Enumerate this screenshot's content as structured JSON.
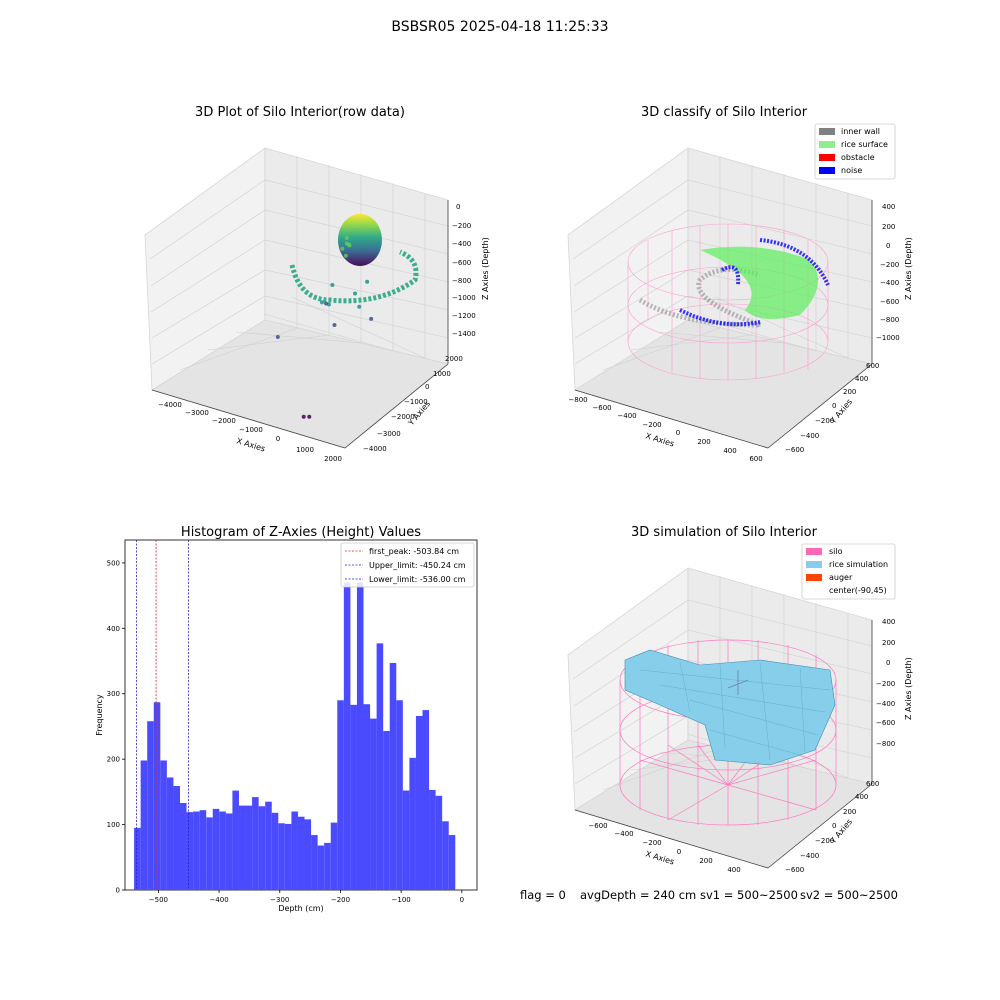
{
  "figure": {
    "suptitle": "BSBSR05 2025-04-18 11:25:33"
  },
  "status": {
    "flag": "flag = 0",
    "avg_depth": "avgDepth = 240 cm",
    "sv1": "sv1 = 500~2500",
    "sv2": "sv2 = 500~2500"
  },
  "colors": {
    "bars": "#4a4aff",
    "first_peak": "#d62728",
    "limits": "#2222cc",
    "inner_wall": "#808080",
    "rice_surface": "#90ee90",
    "obstacle": "#ff0000",
    "noise": "#0000ff",
    "silo": "#ff69b4",
    "rice_simulation": "#87ceeb",
    "auger": "#ff4500"
  },
  "chart_data": [
    {
      "type": "scatter",
      "title": "3D Plot of Silo Interior(row data)",
      "xlabel": "X Axies",
      "ylabel": "Y Axies",
      "zlabel": "Z Axies (Depth)",
      "x_ticks": [
        "−4000",
        "−3000",
        "−2000",
        "−1000",
        "0",
        "1000",
        "2000"
      ],
      "y_ticks": [
        "−4000",
        "−3000",
        "−2000",
        "−1000",
        "0",
        "1000",
        "2000"
      ],
      "z_ticks": [
        "−1400",
        "−1200",
        "−1000",
        "−800",
        "−600",
        "−400",
        "−200",
        "0"
      ],
      "xlim": [
        -4500,
        2200
      ],
      "ylim": [
        -4500,
        2200
      ],
      "zlim": [
        -1500,
        100
      ],
      "colormap": "viridis",
      "points": [
        {
          "x": -300,
          "y": 300,
          "z": -250
        },
        {
          "x": -200,
          "y": 250,
          "z": -300
        },
        {
          "x": -400,
          "y": 200,
          "z": -350
        },
        {
          "x": -100,
          "y": 100,
          "z": -280
        },
        {
          "x": -350,
          "y": 400,
          "z": -320
        },
        {
          "x": -250,
          "y": 150,
          "z": -400
        },
        {
          "x": 200,
          "y": -100,
          "z": -700
        },
        {
          "x": 400,
          "y": -200,
          "z": -800
        },
        {
          "x": -800,
          "y": 300,
          "z": -750
        },
        {
          "x": -600,
          "y": -300,
          "z": -850
        },
        {
          "x": 300,
          "y": 500,
          "z": -650
        },
        {
          "x": -1000,
          "y": 0,
          "z": -900
        },
        {
          "x": 600,
          "y": 200,
          "z": -950
        },
        {
          "x": -300,
          "y": -500,
          "z": -1000
        },
        {
          "x": -1500,
          "y": 1200,
          "z": -1100
        },
        {
          "x": -2000,
          "y": -1000,
          "z": -1200
        },
        {
          "x": 500,
          "y": -4000,
          "z": -1400
        },
        {
          "x": 800,
          "y": -4200,
          "z": -1350
        }
      ]
    },
    {
      "type": "scatter",
      "title": "3D classify of Silo Interior",
      "xlabel": "X Axies",
      "ylabel": "Y Axies",
      "zlabel": "Z Axies (Depth)",
      "x_ticks": [
        "−800",
        "−600",
        "−400",
        "−200",
        "0",
        "200",
        "400",
        "600"
      ],
      "y_ticks": [
        "−600",
        "−400",
        "−200",
        "0",
        "200",
        "400",
        "600"
      ],
      "z_ticks": [
        "−1000",
        "−800",
        "−600",
        "−400",
        "−200",
        "0",
        "200",
        "400"
      ],
      "legend": [
        "inner wall",
        "rice surface",
        "obstacle",
        "noise"
      ],
      "legend_position": "top-right"
    },
    {
      "type": "bar",
      "title": "Histogram of Z-Axies (Height) Values",
      "xlabel": "Depth (cm)",
      "ylabel": "Frequency",
      "xlim": [
        -555,
        25
      ],
      "ylim": [
        0,
        535
      ],
      "x_ticks": [
        -500,
        -400,
        -300,
        -200,
        -100,
        0
      ],
      "y_ticks": [
        0,
        100,
        200,
        300,
        400,
        500
      ],
      "bin_start": -540,
      "bin_width": 10.8,
      "values": [
        95,
        198,
        258,
        287,
        198,
        172,
        159,
        133,
        119,
        120,
        122,
        111,
        124,
        120,
        117,
        152,
        129,
        129,
        142,
        128,
        135,
        118,
        102,
        101,
        120,
        112,
        108,
        84,
        68,
        72,
        103,
        290,
        470,
        283,
        470,
        284,
        262,
        377,
        243,
        347,
        290,
        152,
        202,
        266,
        275,
        153,
        144,
        105,
        84
      ],
      "lines": [
        {
          "name": "first_peak: -503.84 cm",
          "x": -503.84,
          "color": "#d62728"
        },
        {
          "name": "Upper_limit: -450.24 cm",
          "x": -450.24,
          "color": "#2222cc"
        },
        {
          "name": "Lower_limit: -536.00 cm",
          "x": -536.0,
          "color": "#2222cc"
        }
      ],
      "legend_position": "top-right"
    },
    {
      "type": "area",
      "title": "3D simulation of Silo Interior",
      "xlabel": "X Axies",
      "ylabel": "Y Axies",
      "zlabel": "Z Axies (Depth)",
      "x_ticks": [
        "−600",
        "−400",
        "−200",
        "0",
        "200",
        "400"
      ],
      "y_ticks": [
        "−600",
        "−400",
        "−200",
        "0",
        "200",
        "400",
        "600"
      ],
      "z_ticks": [
        "−800",
        "−600",
        "−400",
        "−200",
        "0",
        "200",
        "400"
      ],
      "legend": [
        "silo",
        "rice simulation",
        "auger",
        "center(-90,45)"
      ],
      "legend_position": "top-right"
    }
  ]
}
